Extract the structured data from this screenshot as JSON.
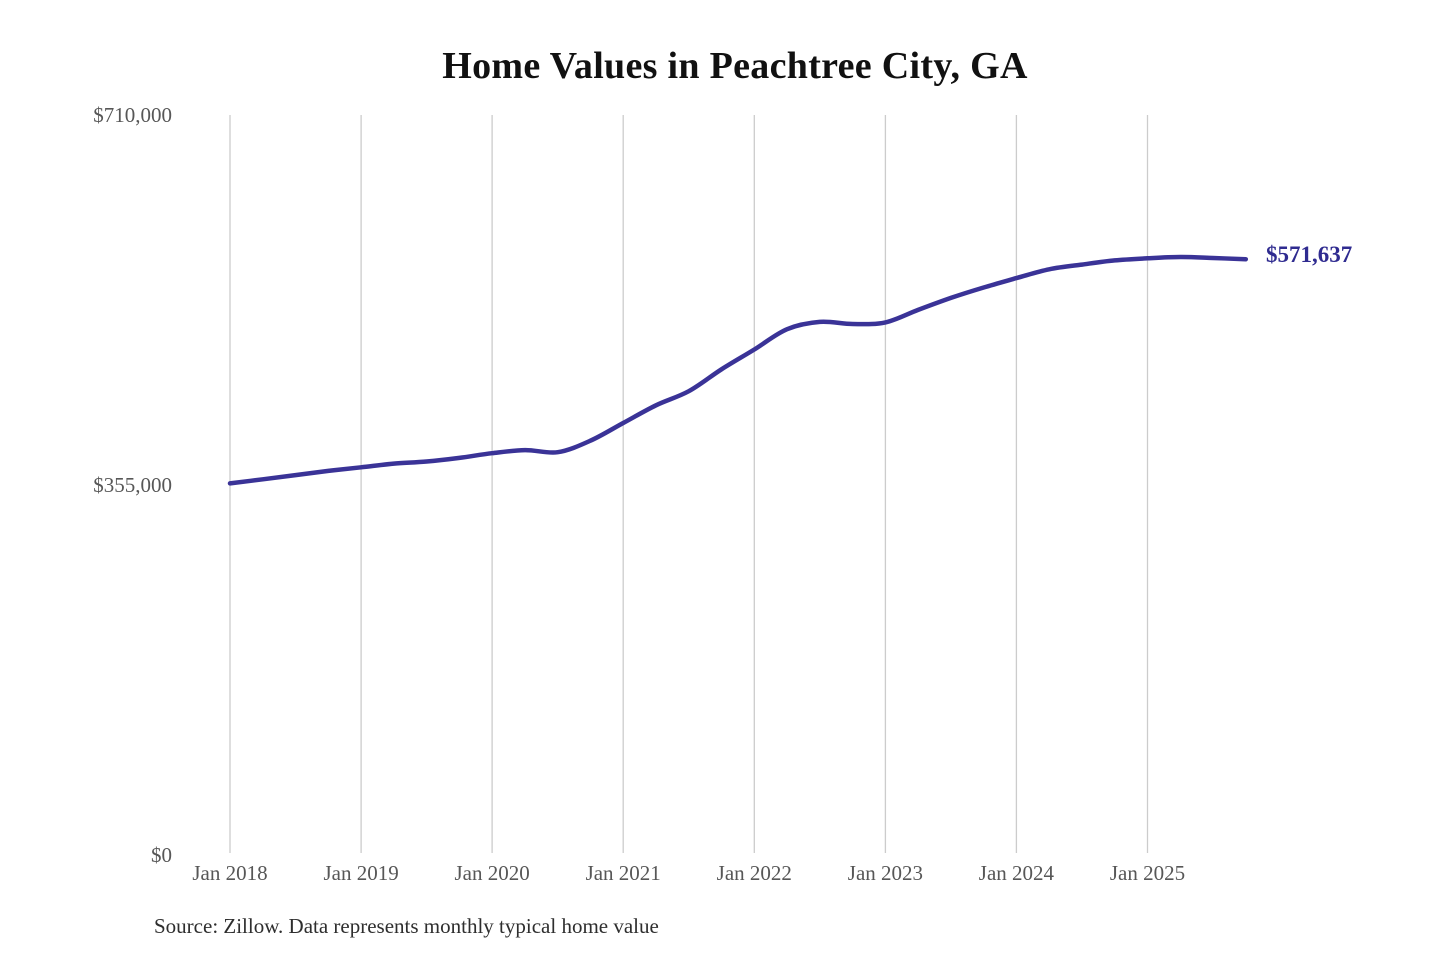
{
  "page": {
    "title": "Home Values in Peachtree City, GA",
    "source_note": "Source: Zillow. Data represents monthly typical home value"
  },
  "colors": {
    "line": "#3a3397",
    "annotation_text": "#2f2b90",
    "grid": "#cccccc",
    "axis_text": "#575757",
    "title_text": "#111111",
    "source_text": "#2e2e2e"
  },
  "chart_data": {
    "type": "line",
    "title": "Home Values in Peachtree City, GA",
    "xlabel": "",
    "ylabel": "",
    "ylim": [
      0,
      710000
    ],
    "grid": "vertical",
    "legend": "none",
    "series_name": "Monthly typical home value",
    "x": [
      "2018-01",
      "2018-04",
      "2018-07",
      "2018-10",
      "2019-01",
      "2019-04",
      "2019-07",
      "2019-10",
      "2020-01",
      "2020-04",
      "2020-07",
      "2020-10",
      "2021-01",
      "2021-04",
      "2021-07",
      "2021-10",
      "2022-01",
      "2022-04",
      "2022-07",
      "2022-10",
      "2023-01",
      "2023-04",
      "2023-07",
      "2023-10",
      "2024-01",
      "2024-04",
      "2024-07",
      "2024-10",
      "2025-01",
      "2025-04",
      "2025-07",
      "2025-10"
    ],
    "values": [
      356500,
      360500,
      364500,
      368500,
      372000,
      375500,
      377500,
      381000,
      385500,
      388500,
      386500,
      397500,
      414500,
      431500,
      445000,
      466000,
      485000,
      504500,
      511500,
      509500,
      511000,
      523000,
      534500,
      544500,
      553500,
      562000,
      566500,
      570500,
      572500,
      573800,
      572800,
      571637
    ],
    "x_ticks": [
      "Jan 2018",
      "Jan 2019",
      "Jan 2020",
      "Jan 2021",
      "Jan 2022",
      "Jan 2023",
      "Jan 2024",
      "Jan 2025"
    ],
    "y_ticks": [
      {
        "value": 710000,
        "label": "$710,000"
      },
      {
        "value": 355000,
        "label": "$355,000"
      },
      {
        "value": 0,
        "label": "$0"
      }
    ],
    "annotation": {
      "text": "$571,637",
      "value": 571637,
      "x": "2025-10"
    }
  }
}
